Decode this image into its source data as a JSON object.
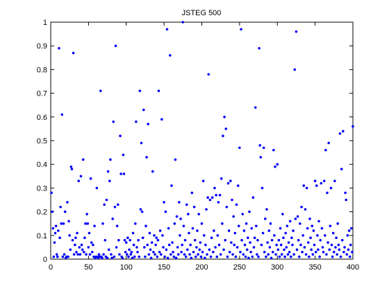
{
  "chart_data": {
    "type": "scatter",
    "title": "JSTEG 500",
    "color": "#0000ff",
    "xlim": [
      0,
      400
    ],
    "xticks": [
      0,
      50,
      100,
      150,
      200,
      250,
      300,
      350,
      400
    ],
    "ylim": [
      0,
      1
    ],
    "yticks": [
      0,
      0.1,
      0.2,
      0.3,
      0.4,
      0.5,
      0.6,
      0.7,
      0.8,
      0.9,
      1
    ],
    "x": [
      1,
      2,
      3,
      4,
      5,
      6,
      7,
      8,
      9,
      10,
      11,
      12,
      13,
      14,
      15,
      16,
      17,
      18,
      19,
      20,
      21,
      22,
      23,
      24,
      25,
      26,
      27,
      28,
      29,
      30,
      31,
      32,
      33,
      34,
      35,
      36,
      37,
      38,
      39,
      40,
      41,
      42,
      43,
      44,
      45,
      46,
      47,
      48,
      49,
      50,
      51,
      52,
      53,
      54,
      55,
      56,
      57,
      58,
      59,
      60,
      61,
      62,
      63,
      64,
      65,
      66,
      67,
      68,
      69,
      70,
      71,
      72,
      73,
      74,
      75,
      76,
      77,
      78,
      79,
      80,
      81,
      82,
      83,
      84,
      85,
      86,
      87,
      88,
      89,
      90,
      91,
      92,
      93,
      94,
      95,
      96,
      97,
      98,
      99,
      100,
      101,
      102,
      103,
      104,
      105,
      106,
      107,
      108,
      109,
      110,
      111,
      112,
      113,
      114,
      115,
      116,
      117,
      118,
      119,
      120,
      121,
      122,
      123,
      124,
      125,
      126,
      127,
      128,
      129,
      130,
      131,
      132,
      133,
      134,
      135,
      136,
      137,
      138,
      139,
      140,
      141,
      142,
      143,
      144,
      145,
      146,
      147,
      148,
      149,
      150,
      151,
      152,
      153,
      154,
      155,
      156,
      157,
      158,
      159,
      160,
      161,
      162,
      163,
      164,
      165,
      166,
      167,
      168,
      169,
      170,
      171,
      172,
      173,
      174,
      175,
      176,
      177,
      178,
      179,
      180,
      181,
      182,
      183,
      184,
      185,
      186,
      187,
      188,
      189,
      190,
      191,
      192,
      193,
      194,
      195,
      196,
      197,
      198,
      199,
      200,
      201,
      202,
      203,
      204,
      205,
      206,
      207,
      208,
      209,
      210,
      211,
      212,
      213,
      214,
      215,
      216,
      217,
      218,
      219,
      220,
      221,
      222,
      223,
      224,
      225,
      226,
      227,
      228,
      229,
      230,
      231,
      232,
      233,
      234,
      235,
      236,
      237,
      238,
      239,
      240,
      241,
      242,
      243,
      244,
      245,
      246,
      247,
      248,
      249,
      250,
      251,
      252,
      253,
      254,
      255,
      256,
      257,
      258,
      259,
      260,
      261,
      262,
      263,
      264,
      265,
      266,
      267,
      268,
      269,
      270,
      271,
      272,
      273,
      274,
      275,
      276,
      277,
      278,
      279,
      280,
      281,
      282,
      283,
      284,
      285,
      286,
      287,
      288,
      289,
      290,
      291,
      292,
      293,
      294,
      295,
      296,
      297,
      298,
      299,
      300,
      301,
      302,
      303,
      304,
      305,
      306,
      307,
      308,
      309,
      310,
      311,
      312,
      313,
      314,
      315,
      316,
      317,
      318,
      319,
      320,
      321,
      322,
      323,
      324,
      325,
      326,
      327,
      328,
      329,
      330,
      331,
      332,
      333,
      334,
      335,
      336,
      337,
      338,
      339,
      340,
      341,
      342,
      343,
      344,
      345,
      346,
      347,
      348,
      349,
      350,
      351,
      352,
      353,
      354,
      355,
      356,
      357,
      358,
      359,
      360,
      361,
      362,
      363,
      364,
      365,
      366,
      367,
      368,
      369,
      370,
      371,
      372,
      373,
      374,
      375,
      376,
      377,
      378,
      379,
      380,
      381,
      382,
      383,
      384,
      385,
      386,
      387,
      388,
      389,
      390,
      391,
      392,
      393,
      394,
      395,
      396,
      397,
      398,
      399,
      400
    ],
    "values": [
      0.28,
      0.2,
      0.13,
      0.01,
      0.07,
      0.11,
      0.14,
      0.02,
      0.01,
      0.12,
      0.89,
      0.09,
      0.22,
      0.15,
      0.61,
      0.01,
      0.15,
      0.02,
      0.2,
      0.005,
      0.01,
      0.24,
      0.01,
      0.16,
      0.1,
      0.04,
      0.39,
      0.38,
      0.08,
      0.87,
      0.02,
      0.06,
      0.09,
      0.03,
      0.11,
      0.02,
      0.33,
      0.05,
      0.02,
      0.35,
      0.06,
      0.04,
      0.42,
      0.03,
      0.09,
      0.15,
      0.02,
      0.19,
      0.15,
      0.05,
      0.11,
      0.02,
      0.34,
      0.07,
      0.03,
      0.06,
      0.01,
      0.14,
      0.005,
      0.01,
      0.3,
      0.01,
      0.005,
      0.02,
      0.01,
      0.71,
      0.01,
      0.005,
      0.15,
      0.02,
      0.23,
      0.08,
      0.01,
      0.25,
      0.005,
      0.37,
      0.04,
      0.33,
      0.42,
      0.02,
      0.005,
      0.17,
      0.58,
      0.01,
      0.22,
      0.9,
      0.05,
      0.14,
      0.23,
      0.08,
      0.02,
      0.52,
      0.36,
      0.01,
      0.005,
      0.44,
      0.36,
      0.08,
      0.03,
      0.07,
      0.02,
      0.09,
      0.01,
      0.04,
      0.08,
      0.02,
      0.03,
      0.005,
      0.11,
      0.06,
      0.01,
      0.15,
      0.58,
      0.05,
      0.03,
      0.08,
      0.01,
      0.71,
      0.21,
      0.49,
      0.2,
      0.09,
      0.63,
      0.05,
      0.01,
      0.14,
      0.43,
      0.06,
      0.57,
      0.02,
      0.11,
      0.04,
      0.005,
      0.07,
      0.37,
      0.03,
      0.1,
      0.02,
      0.06,
      0.09,
      0.01,
      0.08,
      0.71,
      0.03,
      0.12,
      0.02,
      0.59,
      0.1,
      0.05,
      0.24,
      0.01,
      0.2,
      0.04,
      0.97,
      0.005,
      0.13,
      0.06,
      0.86,
      0.02,
      0.31,
      0.07,
      0.03,
      0.01,
      0.15,
      0.42,
      0.005,
      0.18,
      0.05,
      0.02,
      0.24,
      0.1,
      0.17,
      0.03,
      0.06,
      1.0,
      0.14,
      0.02,
      0.08,
      0.01,
      0.23,
      0.04,
      0.19,
      0.11,
      0.02,
      0.06,
      0.005,
      0.28,
      0.13,
      0.03,
      0.22,
      0.08,
      0.01,
      0.05,
      0.12,
      0.02,
      0.19,
      0.04,
      0.07,
      0.01,
      0.15,
      0.03,
      0.33,
      0.1,
      0.005,
      0.06,
      0.21,
      0.02,
      0.26,
      0.78,
      0.04,
      0.25,
      0.01,
      0.09,
      0.26,
      0.03,
      0.12,
      0.3,
      0.05,
      0.27,
      0.01,
      0.1,
      0.24,
      0.06,
      0.27,
      0.02,
      0.34,
      0.15,
      0.52,
      0.04,
      0.6,
      0.08,
      0.55,
      0.22,
      0.01,
      0.32,
      0.12,
      0.03,
      0.33,
      0.07,
      0.25,
      0.02,
      0.18,
      0.06,
      0.11,
      0.01,
      0.23,
      0.05,
      0.31,
      0.14,
      0.47,
      0.03,
      0.97,
      0.08,
      0.19,
      0.02,
      0.12,
      0.06,
      0.01,
      0.15,
      0.04,
      0.09,
      0.005,
      0.2,
      0.07,
      0.03,
      0.13,
      0.01,
      0.26,
      0.05,
      0.09,
      0.64,
      0.14,
      0.02,
      0.08,
      0.01,
      0.89,
      0.48,
      0.43,
      0.06,
      0.3,
      0.11,
      0.47,
      0.03,
      0.17,
      0.01,
      0.21,
      0.07,
      0.02,
      0.12,
      0.05,
      0.15,
      0.005,
      0.08,
      0.03,
      0.46,
      0.1,
      0.39,
      0.02,
      0.06,
      0.4,
      0.04,
      0.08,
      0.01,
      0.13,
      0.06,
      0.02,
      0.19,
      0.09,
      0.04,
      0.01,
      0.11,
      0.05,
      0.14,
      0.02,
      0.07,
      0.03,
      0.16,
      0.01,
      0.09,
      0.06,
      0.12,
      0.02,
      0.8,
      0.17,
      0.96,
      0.04,
      0.18,
      0.08,
      0.01,
      0.15,
      0.06,
      0.22,
      0.03,
      0.1,
      0.31,
      0.05,
      0.21,
      0.02,
      0.3,
      0.13,
      0.07,
      0.01,
      0.17,
      0.09,
      0.04,
      0.14,
      0.02,
      0.12,
      0.06,
      0.33,
      0.03,
      0.31,
      0.1,
      0.04,
      0.16,
      0.01,
      0.08,
      0.32,
      0.13,
      0.05,
      0.03,
      0.33,
      0.1,
      0.46,
      0.02,
      0.28,
      0.07,
      0.49,
      0.04,
      0.14,
      0.3,
      0.06,
      0.01,
      0.11,
      0.03,
      0.33,
      0.05,
      0.09,
      0.02,
      0.15,
      0.06,
      0.04,
      0.53,
      0.01,
      0.38,
      0.08,
      0.54,
      0.03,
      0.05,
      0.28,
      0.25,
      0.02,
      0.1,
      0.04,
      0.12,
      0.01,
      0.06,
      0.13,
      0.03,
      0.56
    ]
  }
}
